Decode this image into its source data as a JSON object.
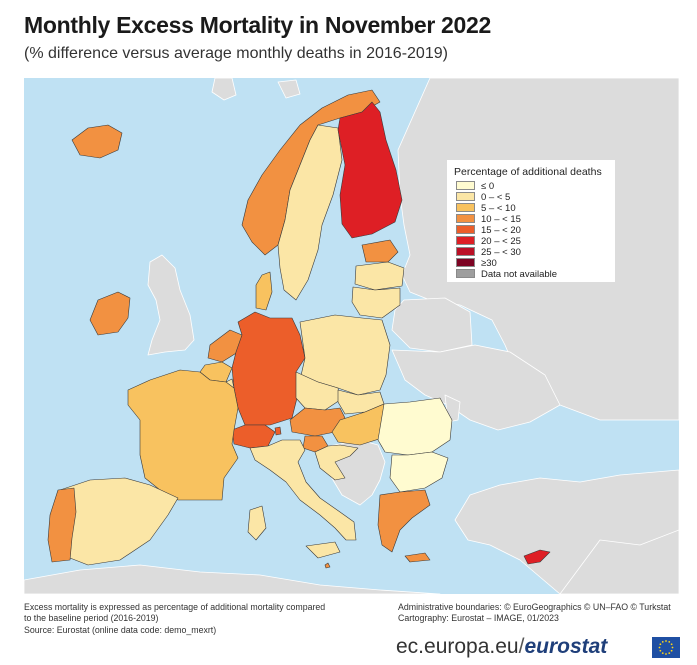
{
  "title": "Monthly Excess Mortality in November 2022",
  "subtitle": "(% difference versus average monthly deaths in 2016-2019)",
  "legend": {
    "title": "Percentage of additional deaths",
    "items": [
      {
        "label": "≤ 0",
        "color": "#fffbd0"
      },
      {
        "label": "0 – < 5",
        "color": "#fbe6a6"
      },
      {
        "label": "5 – < 10",
        "color": "#f8c25f"
      },
      {
        "label": "10 – < 15",
        "color": "#f29141"
      },
      {
        "label": "15 – < 20",
        "color": "#ec5e2a"
      },
      {
        "label": "20 – < 25",
        "color": "#de1f25"
      },
      {
        "label": "25 – < 30",
        "color": "#bb1026"
      },
      {
        "label": "≥30",
        "color": "#7d0323"
      },
      {
        "label": "Data not available",
        "color": "#9e9e9e"
      }
    ]
  },
  "colors": {
    "sea": "#bfe1f3",
    "non_eu_land": "#dcdcdc"
  },
  "footnote": {
    "line1": "Excess mortality is expressed as percentage of additional mortality compared",
    "line2": "to the baseline period (2016-2019)",
    "line3": "Source: Eurostat (online data code: demo_mexrt)"
  },
  "credits": {
    "line1": "Administrative boundaries: © EuroGeographics © UN–FAO © Turkstat",
    "line2": "Cartography: Eurostat – IMAGE, 01/2023"
  },
  "footer": {
    "site": "ec.europa.eu",
    "sep": "/",
    "brand": "eurostat"
  },
  "icons": {
    "flag": "eu-flag-icon"
  },
  "countries": [
    {
      "name": "Iceland",
      "color": "#f29141"
    },
    {
      "name": "Norway",
      "color": "#f29141"
    },
    {
      "name": "Sweden",
      "color": "#fbe6a6"
    },
    {
      "name": "Finland",
      "color": "#de1f25"
    },
    {
      "name": "Estonia",
      "color": "#f29141"
    },
    {
      "name": "Latvia",
      "color": "#fbe6a6"
    },
    {
      "name": "Lithuania",
      "color": "#fbe6a6"
    },
    {
      "name": "Denmark",
      "color": "#f8c25f"
    },
    {
      "name": "Ireland",
      "color": "#f29141"
    },
    {
      "name": "Netherlands",
      "color": "#f29141"
    },
    {
      "name": "Belgium",
      "color": "#f8c25f"
    },
    {
      "name": "Luxembourg",
      "color": "#fbe6a6"
    },
    {
      "name": "Germany",
      "color": "#ec5e2a"
    },
    {
      "name": "Poland",
      "color": "#fbe6a6"
    },
    {
      "name": "Czechia",
      "color": "#fbe6a6"
    },
    {
      "name": "Slovakia",
      "color": "#fbe6a6"
    },
    {
      "name": "Austria",
      "color": "#f29141"
    },
    {
      "name": "Switzerland",
      "color": "#ec5e2a"
    },
    {
      "name": "Liechtenstein",
      "color": "#ec5e2a"
    },
    {
      "name": "Hungary",
      "color": "#f8c25f"
    },
    {
      "name": "Slovenia",
      "color": "#f29141"
    },
    {
      "name": "Croatia",
      "color": "#fbe6a6"
    },
    {
      "name": "Romania",
      "color": "#fffbd0"
    },
    {
      "name": "Bulgaria",
      "color": "#fffbd0"
    },
    {
      "name": "France",
      "color": "#f8c25f"
    },
    {
      "name": "Spain",
      "color": "#fbe6a6"
    },
    {
      "name": "Portugal",
      "color": "#f29141"
    },
    {
      "name": "Italy",
      "color": "#fbe6a6"
    },
    {
      "name": "Greece",
      "color": "#f29141"
    },
    {
      "name": "Malta",
      "color": "#f29141"
    },
    {
      "name": "Cyprus",
      "color": "#de1f25"
    }
  ]
}
